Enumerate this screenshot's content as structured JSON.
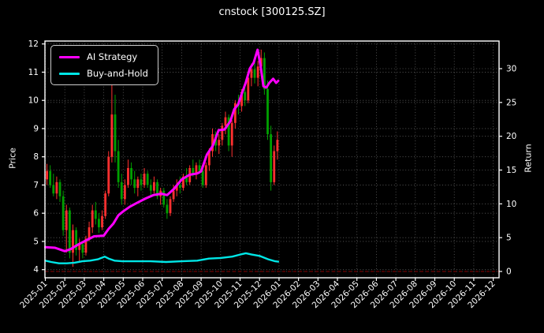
{
  "title": "cnstock [300125.SZ]",
  "legend": {
    "items": [
      {
        "label": "AI Strategy",
        "color": "#ff00ff"
      },
      {
        "label": "Buy-and-Hold",
        "color": "#00e6e6"
      }
    ]
  },
  "axes": {
    "left_label": "Price",
    "right_label": "Return"
  },
  "chart_data": {
    "type": "candlestick+line",
    "title": "cnstock [300125.SZ]",
    "ylabel_left": "Price",
    "ylabel_right": "Return",
    "grid": true,
    "legend_position": "upper-left",
    "price_ticks": [
      4,
      5,
      6,
      7,
      8,
      9,
      10,
      11,
      12
    ],
    "return_ticks": [
      0,
      5,
      10,
      15,
      20,
      25,
      30
    ],
    "price_axis_range": [
      3.7,
      12.15
    ],
    "return_axis_range": [
      -0.9,
      34.1
    ],
    "x_tick_labels": [
      "2025-01",
      "2025-02",
      "2025-03",
      "2025-04",
      "2025-05",
      "2025-06",
      "2025-07",
      "2025-08",
      "2025-09",
      "2025-10",
      "2025-11",
      "2025-12",
      "2026-01",
      "2026-02",
      "2026-03",
      "2026-04",
      "2026-05",
      "2026-06",
      "2026-07",
      "2026-08",
      "2026-09",
      "2026-10",
      "2026-11",
      "2026-12"
    ],
    "data_span_months": 12,
    "colors": {
      "background": "#000000",
      "text": "#ffffff",
      "candle_up": "#ff3030",
      "candle_down": "#00a000",
      "ai_strategy": "#ff00ff",
      "buy_and_hold": "#00e6e6",
      "grid": "rgba(255,255,255,0.38)",
      "zero_line": "#8b0000",
      "spine": "#ffffff"
    },
    "zero_return_line": 0,
    "candles_note": "OHLC in Price units, ~weekly samples Jan-2025 through Dec-2025, Chinese convention: red=up, green=down",
    "candles": [
      [
        7.2,
        7.75,
        7.0,
        7.5
      ],
      [
        7.5,
        7.7,
        6.9,
        7.0
      ],
      [
        7.0,
        7.4,
        6.6,
        6.7
      ],
      [
        6.7,
        7.3,
        6.5,
        7.1
      ],
      [
        7.1,
        7.2,
        6.4,
        6.6
      ],
      [
        6.6,
        6.8,
        5.2,
        5.4
      ],
      [
        5.4,
        6.3,
        4.6,
        6.1
      ],
      [
        6.1,
        6.2,
        4.4,
        4.6
      ],
      [
        4.6,
        5.6,
        4.1,
        5.4
      ],
      [
        5.4,
        5.5,
        4.5,
        4.7
      ],
      [
        4.7,
        5.1,
        4.3,
        4.9
      ],
      [
        4.9,
        5.0,
        4.4,
        4.6
      ],
      [
        4.6,
        5.2,
        4.5,
        5.1
      ],
      [
        5.1,
        5.7,
        5.0,
        5.5
      ],
      [
        5.5,
        6.3,
        5.3,
        6.1
      ],
      [
        6.1,
        6.4,
        5.6,
        5.8
      ],
      [
        5.8,
        6.0,
        5.3,
        5.5
      ],
      [
        5.5,
        6.1,
        5.4,
        5.9
      ],
      [
        5.9,
        6.8,
        5.8,
        6.7
      ],
      [
        6.7,
        8.2,
        6.6,
        8.0
      ],
      [
        8.0,
        10.7,
        7.8,
        9.5
      ],
      [
        9.5,
        10.2,
        7.8,
        8.2
      ],
      [
        8.2,
        8.6,
        6.9,
        7.1
      ],
      [
        7.1,
        7.4,
        6.3,
        6.5
      ],
      [
        6.5,
        7.2,
        6.3,
        7.0
      ],
      [
        7.0,
        7.9,
        6.9,
        7.6
      ],
      [
        7.6,
        7.8,
        7.0,
        7.2
      ],
      [
        7.2,
        7.5,
        6.7,
        6.9
      ],
      [
        6.9,
        7.3,
        6.6,
        7.2
      ],
      [
        7.2,
        7.4,
        6.8,
        7.0
      ],
      [
        7.0,
        7.6,
        6.9,
        7.4
      ],
      [
        7.4,
        7.5,
        6.9,
        7.0
      ],
      [
        7.0,
        7.2,
        6.6,
        6.8
      ],
      [
        6.8,
        7.3,
        6.7,
        7.1
      ],
      [
        7.1,
        7.2,
        6.5,
        6.6
      ],
      [
        6.6,
        6.9,
        6.3,
        6.8
      ],
      [
        6.8,
        6.9,
        6.2,
        6.3
      ],
      [
        6.3,
        6.5,
        5.8,
        6.0
      ],
      [
        6.0,
        6.6,
        5.9,
        6.5
      ],
      [
        6.5,
        7.0,
        6.4,
        6.8
      ],
      [
        6.8,
        7.2,
        6.6,
        7.0
      ],
      [
        7.0,
        7.3,
        6.7,
        6.9
      ],
      [
        6.9,
        7.4,
        6.8,
        7.3
      ],
      [
        7.3,
        7.6,
        7.0,
        7.1
      ],
      [
        7.1,
        7.7,
        7.0,
        7.6
      ],
      [
        7.6,
        7.9,
        7.3,
        7.4
      ],
      [
        7.4,
        7.8,
        7.2,
        7.7
      ],
      [
        7.7,
        7.9,
        7.4,
        7.5
      ],
      [
        7.5,
        7.6,
        6.9,
        7.0
      ],
      [
        7.0,
        7.8,
        6.9,
        7.7
      ],
      [
        7.7,
        8.3,
        7.5,
        8.2
      ],
      [
        8.2,
        9.0,
        8.0,
        8.8
      ],
      [
        8.8,
        8.9,
        8.2,
        8.4
      ],
      [
        8.4,
        8.8,
        8.1,
        8.6
      ],
      [
        8.6,
        9.2,
        8.4,
        9.1
      ],
      [
        9.1,
        9.6,
        8.8,
        9.4
      ],
      [
        9.4,
        9.5,
        8.2,
        8.4
      ],
      [
        8.4,
        9.3,
        8.0,
        9.2
      ],
      [
        9.2,
        10.0,
        9.0,
        9.9
      ],
      [
        9.9,
        10.2,
        9.5,
        9.8
      ],
      [
        9.8,
        10.4,
        9.6,
        10.3
      ],
      [
        10.3,
        10.6,
        9.8,
        10.0
      ],
      [
        10.0,
        10.9,
        9.9,
        10.8
      ],
      [
        10.8,
        11.3,
        10.5,
        11.1
      ],
      [
        11.1,
        11.5,
        10.6,
        10.8
      ],
      [
        10.8,
        11.4,
        10.5,
        11.2
      ],
      [
        11.2,
        11.8,
        10.9,
        11.5
      ],
      [
        11.5,
        11.7,
        10.2,
        10.4
      ],
      [
        10.4,
        10.7,
        8.6,
        8.8
      ],
      [
        8.8,
        9.1,
        6.8,
        7.1
      ],
      [
        7.1,
        8.4,
        7.0,
        8.2
      ],
      [
        8.2,
        8.9,
        7.9,
        8.6
      ]
    ],
    "series": [
      {
        "name": "AI Strategy",
        "axis": "return",
        "color": "#ff00ff",
        "x_months": [
          0,
          0.5,
          1.0,
          1.3,
          1.7,
          2.1,
          2.5,
          3.0,
          3.25,
          3.5,
          3.75,
          4.0,
          4.35,
          4.75,
          5.15,
          5.55,
          5.95,
          6.25,
          6.6,
          7.0,
          7.4,
          7.8,
          8.0,
          8.3,
          8.6,
          8.9,
          9.2,
          9.5,
          9.7,
          9.9,
          10.1,
          10.3,
          10.5,
          10.7,
          10.9,
          11.05,
          11.2,
          11.35,
          11.5,
          11.7,
          11.85,
          11.96
        ],
        "y": [
          3.6,
          3.5,
          3.0,
          3.3,
          4.0,
          4.6,
          5.2,
          5.3,
          6.3,
          7.1,
          8.3,
          8.9,
          9.6,
          10.2,
          10.8,
          11.3,
          11.5,
          11.3,
          12.2,
          13.6,
          14.3,
          14.5,
          14.8,
          17.3,
          18.6,
          20.9,
          21.0,
          22.2,
          24.0,
          24.7,
          26.4,
          28.0,
          30.0,
          30.9,
          32.8,
          30.5,
          27.4,
          27.2,
          27.9,
          28.5,
          27.9,
          28.2
        ]
      },
      {
        "name": "Buy-and-Hold",
        "axis": "return",
        "color": "#00e6e6",
        "x_months": [
          0,
          0.3,
          0.7,
          1.1,
          1.5,
          1.9,
          2.3,
          2.7,
          3.05,
          3.25,
          3.55,
          3.95,
          4.5,
          5.4,
          6.2,
          7.0,
          7.8,
          8.4,
          9.0,
          9.6,
          10.0,
          10.3,
          10.6,
          11.0,
          11.45,
          11.8,
          11.96
        ],
        "y": [
          1.6,
          1.4,
          1.2,
          1.2,
          1.3,
          1.5,
          1.6,
          1.8,
          2.2,
          1.9,
          1.6,
          1.5,
          1.5,
          1.5,
          1.4,
          1.5,
          1.6,
          1.9,
          2.0,
          2.2,
          2.5,
          2.7,
          2.5,
          2.3,
          1.8,
          1.5,
          1.45
        ]
      }
    ]
  }
}
